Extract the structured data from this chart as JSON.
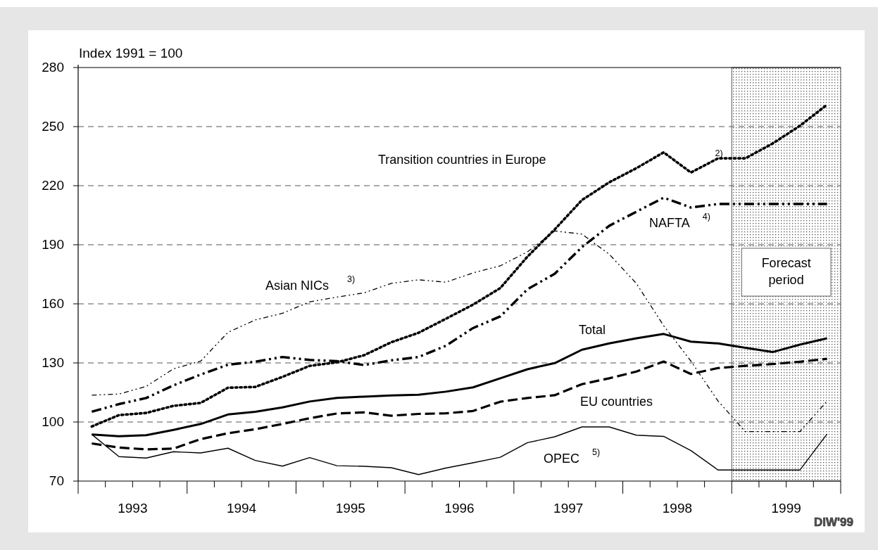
{
  "chart_data": {
    "type": "line",
    "ylabel": "Index 1991 = 100",
    "xlim": [
      1993,
      2000
    ],
    "xticks": [
      {
        "value": 1993,
        "label": null
      },
      {
        "value": 1993.25,
        "label": null
      },
      {
        "value": 1993.5,
        "label": null
      },
      {
        "value": 1993.75,
        "label": null
      },
      {
        "value": 1994,
        "label": null
      },
      {
        "value": 1994.25,
        "label": null
      },
      {
        "value": 1994.5,
        "label": null
      },
      {
        "value": 1994.75,
        "label": null
      },
      {
        "value": 1995,
        "label": null
      },
      {
        "value": 1995.25,
        "label": null
      },
      {
        "value": 1995.5,
        "label": null
      },
      {
        "value": 1995.75,
        "label": null
      },
      {
        "value": 1996,
        "label": null
      },
      {
        "value": 1996.25,
        "label": null
      },
      {
        "value": 1996.5,
        "label": null
      },
      {
        "value": 1996.75,
        "label": null
      },
      {
        "value": 1997,
        "label": null
      },
      {
        "value": 1997.25,
        "label": null
      },
      {
        "value": 1997.5,
        "label": null
      },
      {
        "value": 1997.75,
        "label": null
      },
      {
        "value": 1998,
        "label": null
      },
      {
        "value": 1998.25,
        "label": null
      },
      {
        "value": 1998.5,
        "label": null
      },
      {
        "value": 1998.75,
        "label": null
      },
      {
        "value": 1999,
        "label": null
      },
      {
        "value": 1999.25,
        "label": null
      },
      {
        "value": 1999.5,
        "label": null
      },
      {
        "value": 1999.75,
        "label": null
      },
      {
        "value": 2000,
        "label": null
      },
      {
        "value": 1993.5,
        "label": "1993"
      },
      {
        "value": 1994.5,
        "label": "1994"
      },
      {
        "value": 1995.5,
        "label": "1995"
      },
      {
        "value": 1996.5,
        "label": "1996"
      },
      {
        "value": 1997.5,
        "label": "1997"
      },
      {
        "value": 1998.5,
        "label": "1998"
      },
      {
        "value": 1999.5,
        "label": "1999"
      }
    ],
    "x": [
      1993.125,
      1993.375,
      1993.625,
      1993.875,
      1994.125,
      1994.375,
      1994.625,
      1994.875,
      1995.125,
      1995.375,
      1995.625,
      1995.875,
      1996.125,
      1996.375,
      1996.625,
      1996.875,
      1997.125,
      1997.375,
      1997.625,
      1997.875,
      1998.125,
      1998.375,
      1998.625,
      1998.875,
      1999.125,
      1999.375,
      1999.625,
      1999.875
    ],
    "ylim": [
      70,
      280
    ],
    "yticks": [
      70,
      100,
      130,
      160,
      190,
      220,
      250,
      280
    ],
    "grid": "y",
    "series": [
      {
        "name": "Total",
        "color": "#000000",
        "line_style": "solid",
        "values": [
          93.7,
          92.8,
          93.3,
          96.0,
          99.0,
          103.8,
          105.2,
          107.4,
          110.4,
          112.2,
          112.9,
          113.5,
          113.8,
          115.4,
          117.6,
          122.2,
          126.8,
          129.9,
          136.7,
          139.9,
          142.5,
          144.7,
          140.8,
          139.9,
          137.7,
          135.5,
          139.3,
          142.5
        ]
      },
      {
        "name": "EU countries",
        "color": "#000000",
        "line_style": "dashed",
        "values": [
          89.1,
          87.0,
          86.1,
          86.5,
          91.3,
          94.3,
          96.3,
          99.0,
          101.9,
          104.3,
          104.9,
          103.2,
          104.1,
          104.4,
          105.6,
          110.3,
          112.2,
          113.6,
          119.2,
          122.2,
          125.6,
          130.7,
          124.4,
          127.4,
          128.5,
          129.4,
          130.6,
          132.1
        ]
      },
      {
        "name": "NAFTA $^{4)}$",
        "color": "#000000",
        "line_style": "dashdot",
        "values": [
          105.2,
          109.1,
          112.2,
          118.6,
          124.1,
          129.1,
          130.6,
          133.0,
          131.5,
          130.9,
          128.9,
          131.3,
          133.0,
          138.7,
          147.7,
          153.6,
          167.4,
          175.3,
          188.8,
          199.6,
          206.8,
          213.9,
          208.9,
          210.7,
          210.7,
          210.7,
          210.7,
          210.7
        ]
      },
      {
        "name": "Transition countries in Europe $^{2)}$",
        "color": "#000000",
        "line_style": "dotted",
        "values": [
          97.7,
          103.5,
          104.6,
          108.2,
          109.7,
          117.4,
          117.8,
          122.9,
          128.5,
          130.3,
          133.9,
          140.5,
          145.3,
          152.4,
          159.6,
          168.0,
          184.0,
          197.8,
          212.7,
          221.7,
          228.9,
          236.9,
          226.7,
          233.9,
          233.9,
          241.4,
          250.4,
          261.1
        ]
      },
      {
        "name": "Asian NICs $^{3)}$",
        "color": "#000000",
        "line_style": "dashdotdot",
        "values": [
          113.6,
          114.2,
          118.1,
          127.0,
          130.9,
          145.5,
          151.8,
          155.2,
          161.0,
          163.4,
          165.6,
          170.4,
          172.2,
          171.0,
          175.7,
          179.3,
          186.4,
          197.0,
          195.4,
          185.2,
          170.3,
          148.9,
          130.9,
          110.6,
          95.1,
          95.1,
          95.1,
          110.6
        ]
      },
      {
        "name": "OPEC $^{5)}$",
        "color": "#000000",
        "line_style": "solid",
        "values": [
          93.7,
          82.4,
          81.7,
          84.9,
          84.3,
          86.7,
          80.5,
          77.6,
          81.9,
          77.8,
          77.5,
          76.8,
          73.3,
          76.6,
          79.3,
          82.1,
          89.5,
          92.5,
          97.5,
          97.5,
          93.3,
          92.7,
          85.5,
          75.6,
          75.6,
          75.6,
          75.6,
          93.9
        ]
      }
    ],
    "bands": [
      {
        "axis": "x",
        "from": 1999,
        "to": 2000,
        "label": "Forecast period",
        "color": "#555555"
      }
    ],
    "annotations": [
      "DIW'99"
    ]
  }
}
